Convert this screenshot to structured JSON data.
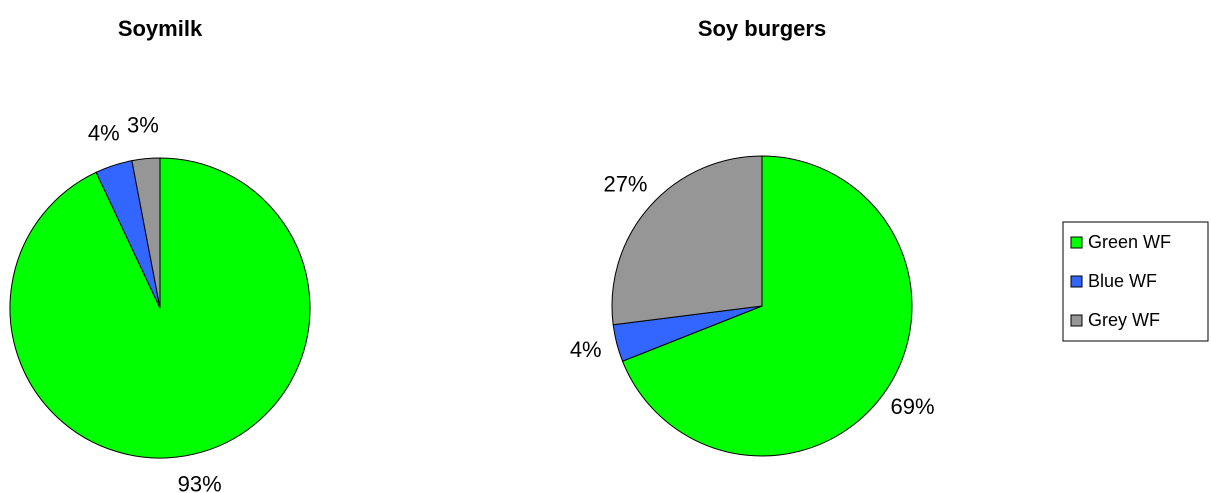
{
  "chart_data": [
    {
      "type": "pie",
      "title": "Soymilk",
      "categories": [
        "Green WF",
        "Blue WF",
        "Grey WF"
      ],
      "values": [
        93,
        4,
        3
      ],
      "value_labels": [
        "93%",
        "4%",
        "3%"
      ],
      "colors": [
        "#00ff00",
        "#3366ff",
        "#969696"
      ]
    },
    {
      "type": "pie",
      "title": "Soy burgers",
      "categories": [
        "Green WF",
        "Blue WF",
        "Grey WF"
      ],
      "values": [
        69,
        4,
        27
      ],
      "value_labels": [
        "69%",
        "4%",
        "27%"
      ],
      "colors": [
        "#00ff00",
        "#3366ff",
        "#969696"
      ]
    }
  ]
}
